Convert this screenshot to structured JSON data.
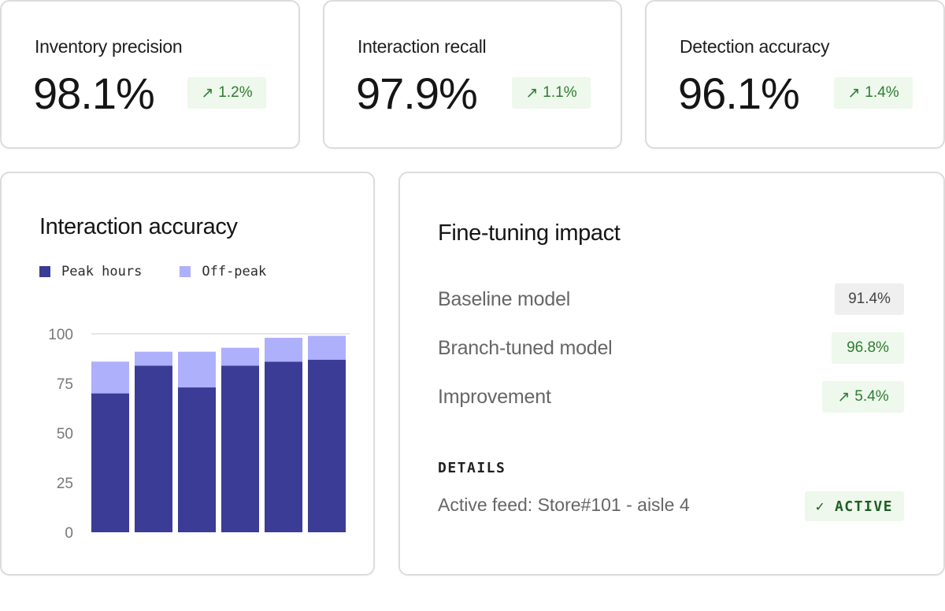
{
  "metrics": [
    {
      "title": "Inventory precision",
      "value": "98.1%",
      "delta": "1.2%",
      "icon": "arrow-up-right-icon"
    },
    {
      "title": "Interaction recall",
      "value": "97.9%",
      "delta": "1.1%",
      "icon": "arrow-up-right-icon"
    },
    {
      "title": "Detection accuracy",
      "value": "96.1%",
      "delta": "1.4%",
      "icon": "arrow-up-right-icon"
    }
  ],
  "chart": {
    "title": "Interaction accuracy",
    "legend": [
      {
        "label": "Peak hours",
        "color": "#3a3c96"
      },
      {
        "label": "Off-peak",
        "color": "#aeb0fb"
      }
    ]
  },
  "chart_data": {
    "type": "bar",
    "stacked": true,
    "title": "Interaction accuracy",
    "xlabel": "",
    "ylabel": "",
    "ylim": [
      0,
      100
    ],
    "yticks": [
      0,
      25,
      50,
      75,
      100
    ],
    "grid": false,
    "legend_position": "top-left",
    "series": [
      {
        "name": "Peak hours",
        "color": "#3a3c96",
        "values": [
          70,
          84,
          73,
          84,
          86,
          87
        ]
      },
      {
        "name": "Off-peak",
        "color": "#aeb0fb",
        "values": [
          16,
          7,
          18,
          9,
          12,
          12
        ]
      }
    ]
  },
  "impact": {
    "title": "Fine-tuning impact",
    "rows": [
      {
        "label": "Baseline model",
        "value": "91.4%",
        "style": "gray"
      },
      {
        "label": "Branch-tuned model",
        "value": "96.8%",
        "style": "green"
      },
      {
        "label": "Improvement",
        "value": "5.4%",
        "style": "green",
        "icon": "arrow-up-right-icon"
      }
    ],
    "details_heading": "DETAILS",
    "feed": "Active feed: Store#101 - aisle 4",
    "status": "ACTIVE",
    "status_icon": "check-icon"
  },
  "colors": {
    "accent_green_bg": "#eef8ec",
    "accent_green_text": "#2e7d32",
    "peak": "#3a3c96",
    "offpeak": "#aeb0fb"
  }
}
